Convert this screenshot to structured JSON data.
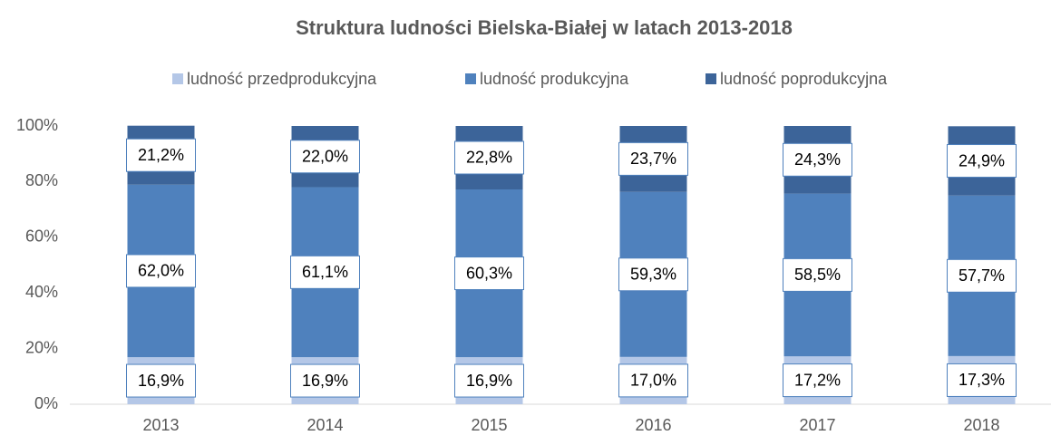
{
  "chart_data": {
    "type": "stacked_bar",
    "title": "Struktura ludności Bielska-Białej w latach 2013-2018",
    "categories": [
      "2013",
      "2014",
      "2015",
      "2016",
      "2017",
      "2018"
    ],
    "series": [
      {
        "name": "ludność przedprodukcyjna",
        "color": "#b4c7e7",
        "values": [
          16.9,
          16.9,
          16.9,
          17.0,
          17.2,
          17.3
        ],
        "value_labels": [
          "16,9%",
          "16,9%",
          "16,9%",
          "17,0%",
          "17,2%",
          "17,3%"
        ]
      },
      {
        "name": "ludność produkcyjna",
        "color": "#4f81bd",
        "values": [
          62.0,
          61.1,
          60.3,
          59.3,
          58.5,
          57.7
        ],
        "value_labels": [
          "62,0%",
          "61,1%",
          "60,3%",
          "59,3%",
          "58,5%",
          "57,7%"
        ]
      },
      {
        "name": "ludność poprodukcyjna",
        "color": "#3c6499",
        "values": [
          21.2,
          22.0,
          22.8,
          23.7,
          24.3,
          24.9
        ],
        "value_labels": [
          "21,2%",
          "22,0%",
          "22,8%",
          "23,7%",
          "24,3%",
          "24,9%"
        ]
      }
    ],
    "ylim": [
      0,
      100
    ],
    "yticks": [
      {
        "value": 0,
        "label": "0%"
      },
      {
        "value": 20,
        "label": "20%"
      },
      {
        "value": 40,
        "label": "40%"
      },
      {
        "value": 60,
        "label": "60%"
      },
      {
        "value": 80,
        "label": "80%"
      },
      {
        "value": 100,
        "label": "100%"
      }
    ],
    "legend": "top"
  }
}
